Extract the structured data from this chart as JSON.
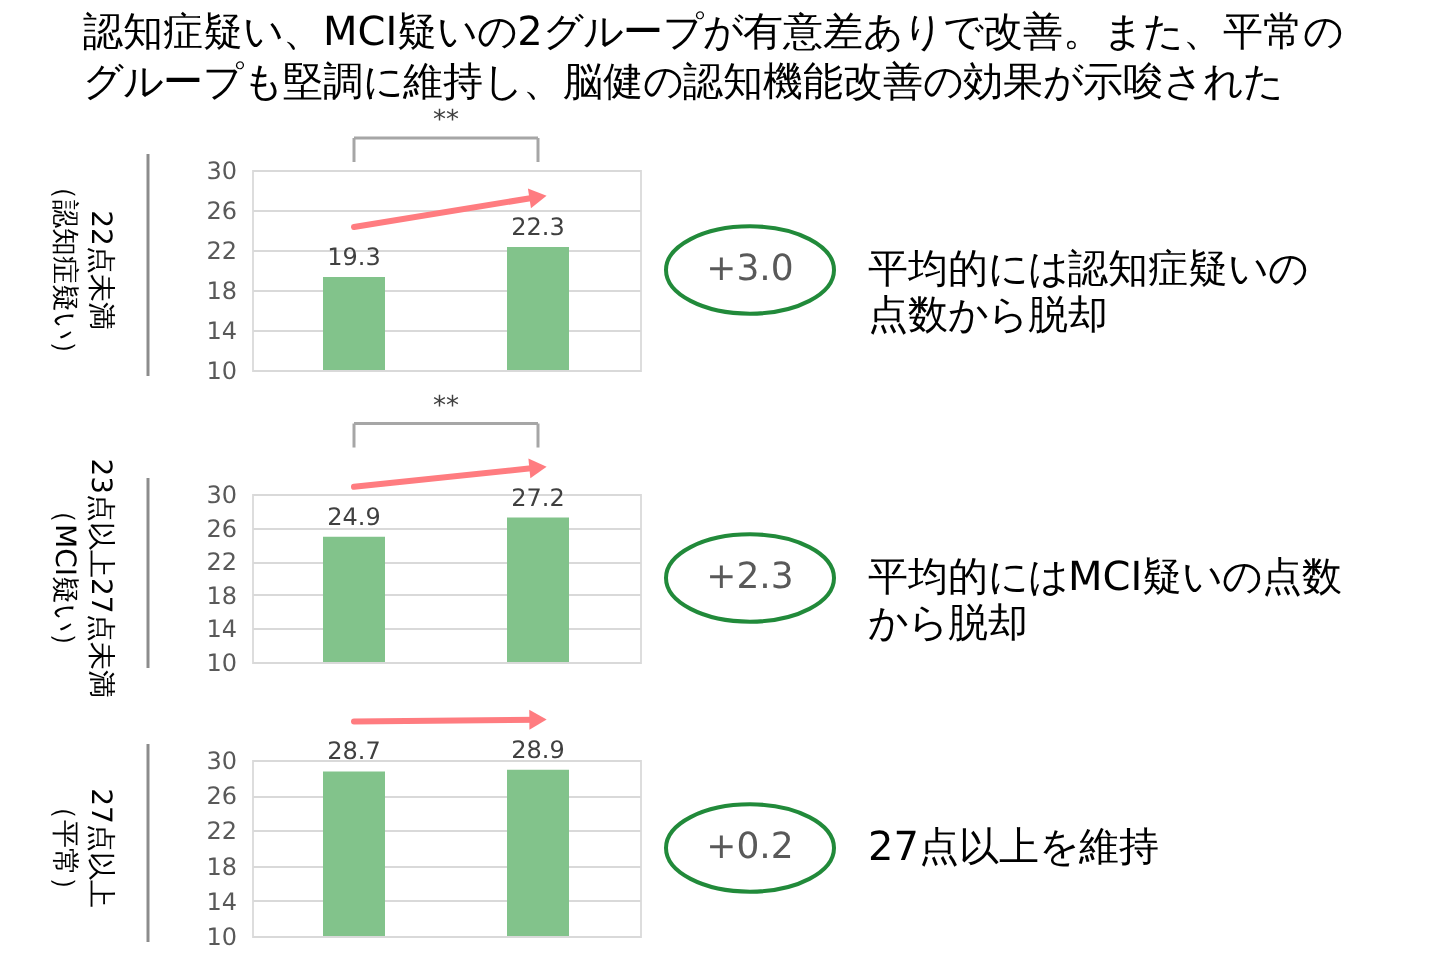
{
  "chart_data": [
    {
      "type": "bar",
      "title": "認知症疑い、MCI疑いの2グループが有意差ありで改善。また、平常のグループも堅調に維持し、脳健の認知機能改善の効果が示唆された",
      "ylabel": "22点未満（認知症疑い）",
      "categories": [
        null,
        null
      ],
      "values": [
        19.3,
        22.3
      ],
      "color": "#82c38b",
      "ylim": [
        10,
        30
      ],
      "yticks": [
        10,
        14,
        18,
        22,
        26,
        30
      ],
      "grid": "y",
      "data_labels": true,
      "annotations": [
        "+3.0",
        "平均的には認知症疑いの点数から脱却",
        "**"
      ]
    },
    {
      "type": "bar",
      "ylabel": "23点以上27点未満（MCI疑い）",
      "categories": [
        null,
        null
      ],
      "values": [
        24.9,
        27.2
      ],
      "color": "#82c38b",
      "ylim": [
        10,
        30
      ],
      "yticks": [
        10,
        14,
        18,
        22,
        26,
        30
      ],
      "grid": "y",
      "data_labels": true,
      "annotations": [
        "+2.3",
        "平均的にはMCI疑いの点数から脱却",
        "**"
      ]
    },
    {
      "type": "bar",
      "ylabel": "27点以上（平常）",
      "categories": [
        null,
        null
      ],
      "values": [
        28.7,
        28.9
      ],
      "color": "#82c38b",
      "ylim": [
        10,
        30
      ],
      "yticks": [
        10,
        14,
        18,
        22,
        26,
        30
      ],
      "grid": "y",
      "data_labels": true,
      "annotations": [
        "+0.2",
        "27点以上を維持"
      ]
    }
  ]
}
